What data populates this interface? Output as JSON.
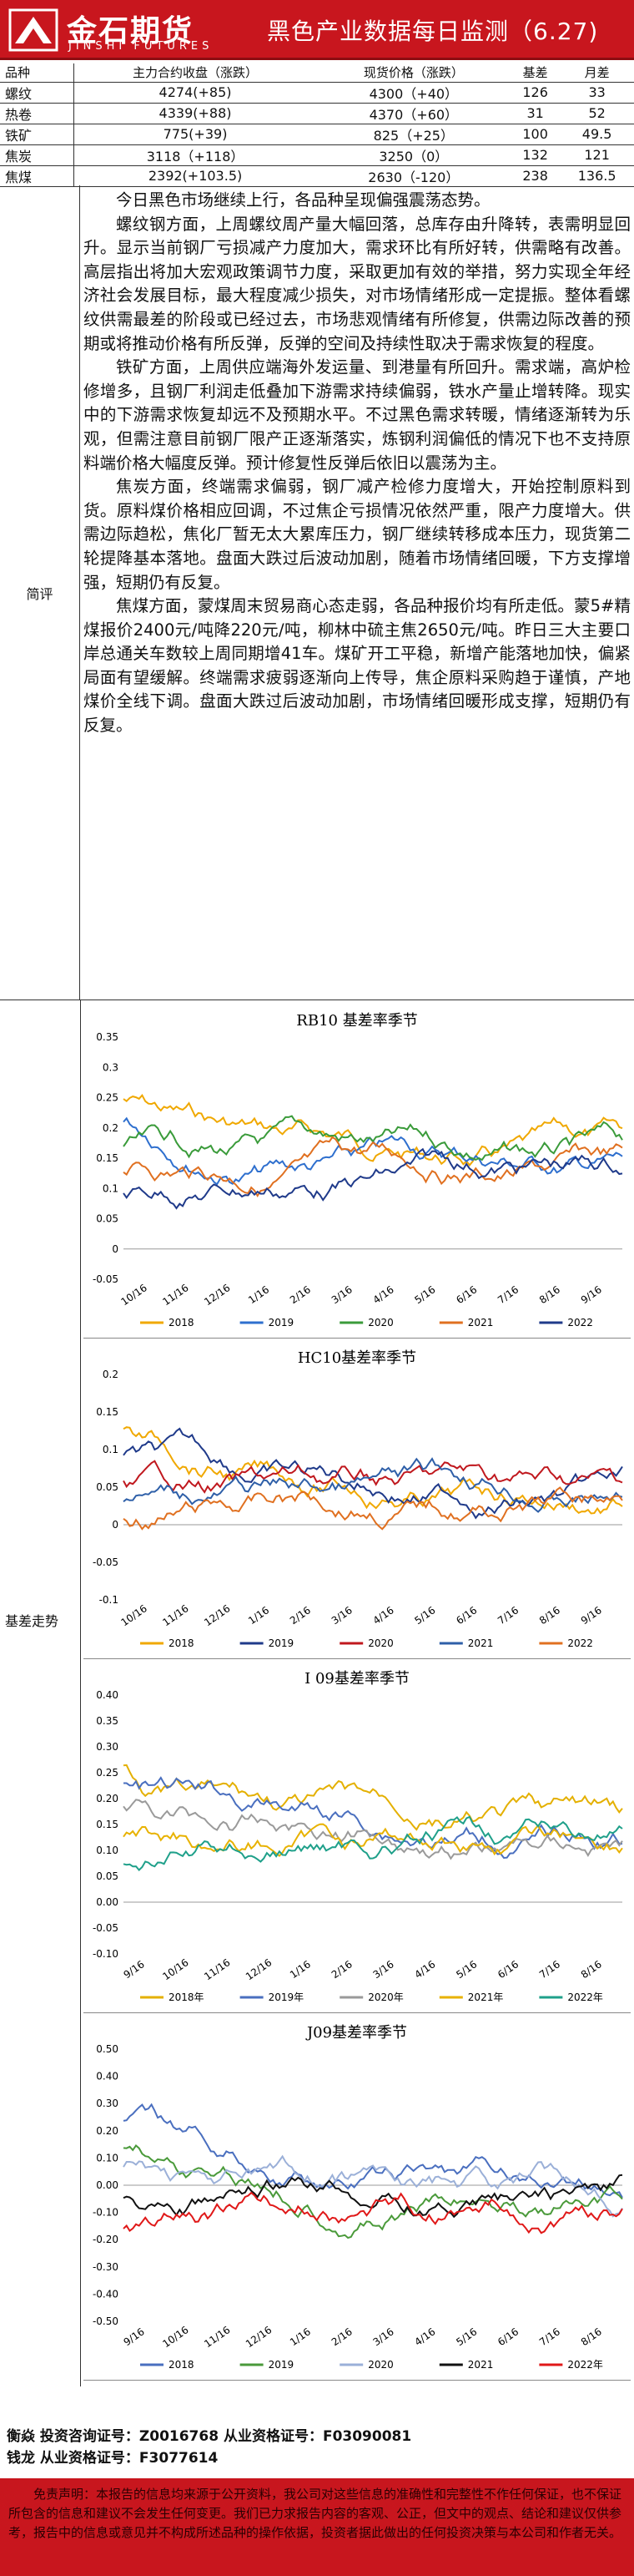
{
  "header": {
    "brand_cn": "金石期货",
    "brand_en": "JINSHI FUTURES",
    "title": "黑色产业数据每日监测（6.27)"
  },
  "table": {
    "headers": [
      "品种",
      "主力合约收盘（涨跌）",
      "现货价格（涨跌）",
      "基差",
      "月差"
    ],
    "rows": [
      [
        "螺纹",
        "4274(+85)",
        "4300（+40）",
        "126",
        "33"
      ],
      [
        "热卷",
        "4339(+88)",
        "4370（+60）",
        "31",
        "52"
      ],
      [
        "铁矿",
        "775(+39)",
        "825（+25）",
        "100",
        "49.5"
      ],
      [
        "焦炭",
        "3118（+118）",
        "3250（0）",
        "132",
        "121"
      ],
      [
        "焦煤",
        "2392(+103.5)",
        "2630（-120）",
        "238",
        "136.5"
      ]
    ]
  },
  "comment": {
    "label": "简评",
    "paragraphs": [
      "今日黑色市场继续上行，各品种呈现偏强震荡态势。",
      "螺纹钢方面，上周螺纹周产量大幅回落，总库存由升降转，表需明显回升。显示当前钢厂亏损减产力度加大，需求环比有所好转，供需略有改善。高层指出将加大宏观政策调节力度，采取更加有效的举措，努力实现全年经济社会发展目标，最大程度减少损失，对市场情绪形成一定提振。整体看螺纹供需最差的阶段或已经过去，市场悲观情绪有所修复，供需边际改善的预期或将推动价格有所反弹，反弹的空间及持续性取决于需求恢复的程度。",
      "铁矿方面，上周供应端海外发运量、到港量有所回升。需求端，高炉检修增多，且钢厂利润走低叠加下游需求持续偏弱，铁水产量止增转降。现实中的下游需求恢复却远不及预期水平。不过黑色需求转暖，情绪逐渐转为乐观，但需注意目前钢厂限产正逐渐落实，炼钢利润偏低的情况下也不支持原料端价格大幅度反弹。预计修复性反弹后依旧以震荡为主。",
      "焦炭方面，终端需求偏弱，钢厂减产检修力度增大，开始控制原料到货。原料煤价格相应回调，不过焦企亏损情况依然严重，限产力度增大。供需边际趋松，焦化厂暂无太大累库压力，钢厂继续转移成本压力，现货第二轮提降基本落地。盘面大跌过后波动加剧，随着市场情绪回暖，下方支撑增强，短期仍有反复。",
      "焦煤方面，蒙煤周末贸易商心态走弱，各品种报价均有所走低。蒙5#精煤报价2400元/吨降220元/吨，柳林中硫主焦2650元/吨。昨日三大主要口岸总通关车数较上周同期增41车。煤矿开工平稳，新增产能落地加快，偏紧局面有望缓解。终端需求疲弱逐渐向上传导，焦企原料采购趋于谨慎，产地煤价全线下调。盘面大跌过后波动加剧，市场情绪回暖形成支撑，短期仍有反复。"
    ]
  },
  "basis_label": "基差走势",
  "charts": [
    {
      "title": "RB10 基差率季节",
      "type": "line",
      "yticks": [
        "0.35",
        "0.3",
        "0.25",
        "0.2",
        "0.15",
        "0.1",
        "0.05",
        "0",
        "-0.05"
      ],
      "xticks": [
        "10/16",
        "11/16",
        "12/16",
        "1/16",
        "2/16",
        "3/16",
        "4/16",
        "5/16",
        "6/16",
        "7/16",
        "8/16",
        "9/16"
      ],
      "series": [
        {
          "name": "2018",
          "color": "#f0a800"
        },
        {
          "name": "2019",
          "color": "#2e6fce"
        },
        {
          "name": "2020",
          "color": "#3a9b3a"
        },
        {
          "name": "2021",
          "color": "#e07020"
        },
        {
          "name": "2022",
          "color": "#1f3a8a"
        }
      ]
    },
    {
      "title": "HC10基差率季节",
      "type": "line",
      "yticks": [
        "0.2",
        "0.15",
        "0.1",
        "0.05",
        "0",
        "-0.05",
        "-0.1"
      ],
      "xticks": [
        "10/16",
        "11/16",
        "12/16",
        "1/16",
        "2/16",
        "3/16",
        "4/16",
        "5/16",
        "6/16",
        "7/16",
        "8/16",
        "9/16"
      ],
      "series": [
        {
          "name": "2018",
          "color": "#f0a800"
        },
        {
          "name": "2019",
          "color": "#1f3a8a"
        },
        {
          "name": "2020",
          "color": "#c0181e"
        },
        {
          "name": "2021",
          "color": "#2e5fa8"
        },
        {
          "name": "2022",
          "color": "#e07020"
        }
      ]
    },
    {
      "title": "I 09基差率季节",
      "type": "line",
      "yticks": [
        "0.40",
        "0.35",
        "0.30",
        "0.25",
        "0.20",
        "0.15",
        "0.10",
        "0.05",
        "0.00",
        "-0.05",
        "-0.10"
      ],
      "xticks": [
        "9/16",
        "10/16",
        "11/16",
        "12/16",
        "1/16",
        "2/16",
        "3/16",
        "4/16",
        "5/16",
        "6/16",
        "7/16",
        "8/16"
      ],
      "series": [
        {
          "name": "2018年",
          "color": "#e4b000"
        },
        {
          "name": "2019年",
          "color": "#4a6fbf"
        },
        {
          "name": "2020年",
          "color": "#9a9a9a"
        },
        {
          "name": "2021年",
          "color": "#e8b200"
        },
        {
          "name": "2022年",
          "color": "#1fa08a"
        }
      ]
    },
    {
      "title": "J09基差率季节",
      "type": "line",
      "yticks": [
        "0.50",
        "0.40",
        "0.30",
        "0.20",
        "0.10",
        "0.00",
        "-0.10",
        "-0.20",
        "-0.30",
        "-0.40",
        "-0.50"
      ],
      "xticks": [
        "9/16",
        "10/16",
        "11/16",
        "12/16",
        "1/16",
        "2/16",
        "3/16",
        "4/16",
        "5/16",
        "6/16",
        "7/16",
        "8/16"
      ],
      "series": [
        {
          "name": "2018",
          "color": "#4a6fbf"
        },
        {
          "name": "2019",
          "color": "#4a9a3a"
        },
        {
          "name": "2020",
          "color": "#9bb0d8"
        },
        {
          "name": "2021",
          "color": "#111111"
        },
        {
          "name": "2022年",
          "color": "#e01818"
        }
      ]
    }
  ],
  "signature": {
    "line1": "衡焱  投资咨询证号：Z0016768  从业资格证号：F03090081",
    "line2": "钱龙  从业资格证号：F3077614"
  },
  "disclaimer": "免责声明：本报告的信息均来源于公开资料，我公司对这些信息的准确性和完整性不作任何保证，也不保证所包含的信息和建议不会发生任何变更。我们已力求报告内容的客观、公正，但文中的观点、结论和建议仅供参考，报告中的信息或意见并不构成所述品种的操作依据，投资者据此做出的任何投资决策与本公司和作者无关。"
}
